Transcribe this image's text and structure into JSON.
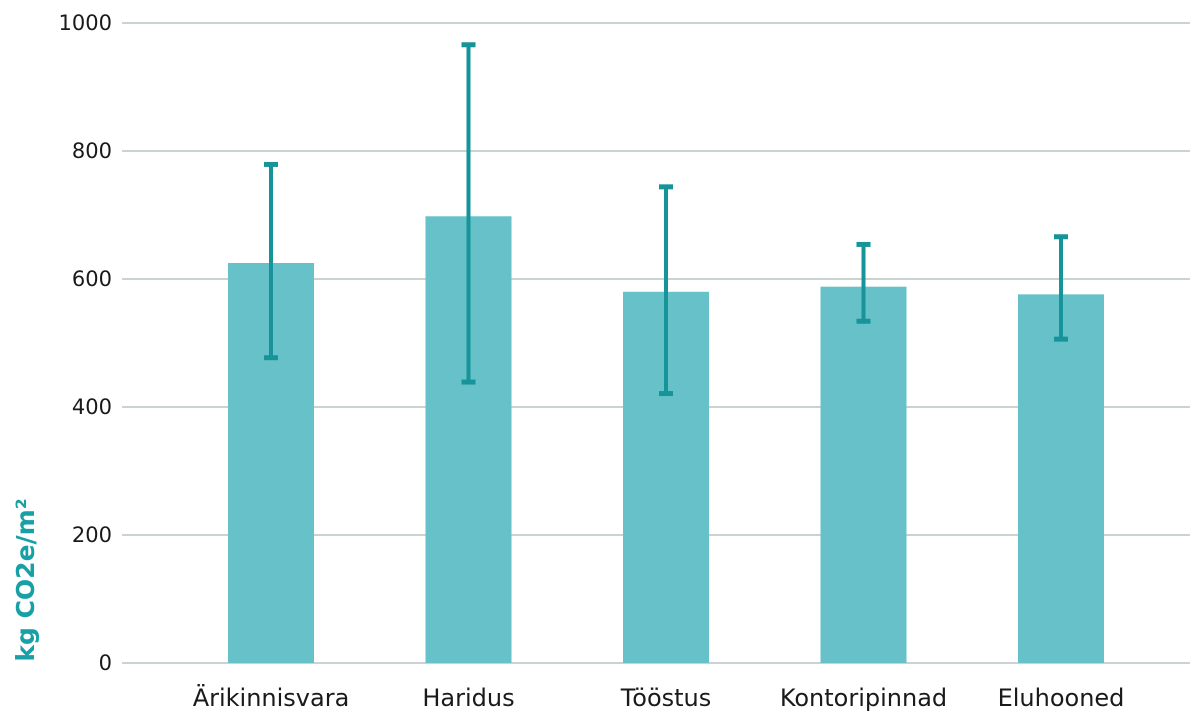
{
  "chart_data": {
    "type": "bar",
    "title": "",
    "xlabel": "",
    "ylabel": "kg CO2e/m²",
    "ylim": [
      0,
      1000
    ],
    "yticks": [
      0,
      200,
      400,
      600,
      800,
      1000
    ],
    "grid": true,
    "categories": [
      "Ärikinnisvara",
      "Haridus",
      "Tööstus",
      "Kontoripinnad",
      "Eluhooned"
    ],
    "values": [
      625,
      698,
      580,
      588,
      576
    ],
    "error_low": [
      477,
      439,
      421,
      534,
      506
    ],
    "error_high": [
      779,
      966,
      744,
      654,
      666
    ],
    "colors": {
      "bar": "#66c2c8",
      "error_bar": "#16949a",
      "ylabel": "#17a0a6"
    }
  }
}
